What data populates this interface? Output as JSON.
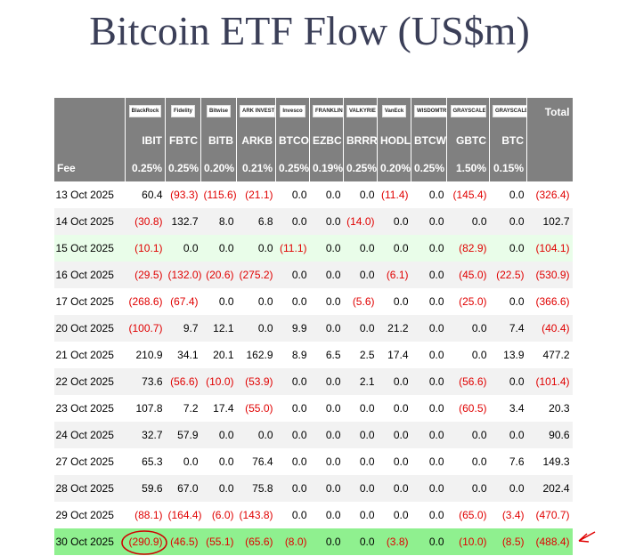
{
  "title": "Bitcoin ETF Flow (US$m)",
  "table": {
    "logos": [
      "BlackRock",
      "Fidelity",
      "Bitwise",
      "ARK INVEST",
      "Invesco",
      "FRANKLIN TEMPLETON",
      "VALKYRIE",
      "VanEck",
      "WISDOMTREE",
      "GRAYSCALE",
      "GRAYSCALE"
    ],
    "total_label": "Total",
    "tickers": [
      "IBIT",
      "FBTC",
      "BITB",
      "ARKB",
      "BTCO",
      "EZBC",
      "BRRR",
      "HODL",
      "BTCW",
      "GBTC",
      "BTC"
    ],
    "fee_label": "Fee",
    "fees": [
      "0.25%",
      "0.25%",
      "0.20%",
      "0.21%",
      "0.25%",
      "0.19%",
      "0.25%",
      "0.20%",
      "0.25%",
      "1.50%",
      "0.15%"
    ],
    "rows": [
      {
        "date": "13 Oct 2025",
        "values": [
          "60.4",
          "(93.3)",
          "(115.6)",
          "(21.1)",
          "0.0",
          "0.0",
          "0.0",
          "(11.4)",
          "0.0",
          "(145.4)",
          "0.0",
          "(326.4)"
        ]
      },
      {
        "date": "14 Oct 2025",
        "values": [
          "(30.8)",
          "132.7",
          "8.0",
          "6.8",
          "0.0",
          "0.0",
          "(14.0)",
          "0.0",
          "0.0",
          "0.0",
          "0.0",
          "102.7"
        ]
      },
      {
        "date": "15 Oct 2025",
        "values": [
          "(10.1)",
          "0.0",
          "0.0",
          "0.0",
          "(11.1)",
          "0.0",
          "0.0",
          "0.0",
          "0.0",
          "(82.9)",
          "0.0",
          "(104.1)"
        ]
      },
      {
        "date": "16 Oct 2025",
        "values": [
          "(29.5)",
          "(132.0)",
          "(20.6)",
          "(275.2)",
          "0.0",
          "0.0",
          "0.0",
          "(6.1)",
          "0.0",
          "(45.0)",
          "(22.5)",
          "(530.9)"
        ]
      },
      {
        "date": "17 Oct 2025",
        "values": [
          "(268.6)",
          "(67.4)",
          "0.0",
          "0.0",
          "0.0",
          "0.0",
          "(5.6)",
          "0.0",
          "0.0",
          "(25.0)",
          "0.0",
          "(366.6)"
        ]
      },
      {
        "date": "20 Oct 2025",
        "values": [
          "(100.7)",
          "9.7",
          "12.1",
          "0.0",
          "9.9",
          "0.0",
          "0.0",
          "21.2",
          "0.0",
          "0.0",
          "7.4",
          "(40.4)"
        ]
      },
      {
        "date": "21 Oct 2025",
        "values": [
          "210.9",
          "34.1",
          "20.1",
          "162.9",
          "8.9",
          "6.5",
          "2.5",
          "17.4",
          "0.0",
          "0.0",
          "13.9",
          "477.2"
        ]
      },
      {
        "date": "22 Oct 2025",
        "values": [
          "73.6",
          "(56.6)",
          "(10.0)",
          "(53.9)",
          "0.0",
          "0.0",
          "2.1",
          "0.0",
          "0.0",
          "(56.6)",
          "0.0",
          "(101.4)"
        ]
      },
      {
        "date": "23 Oct 2025",
        "values": [
          "107.8",
          "7.2",
          "17.4",
          "(55.0)",
          "0.0",
          "0.0",
          "0.0",
          "0.0",
          "0.0",
          "(60.5)",
          "3.4",
          "20.3"
        ]
      },
      {
        "date": "24 Oct 2025",
        "values": [
          "32.7",
          "57.9",
          "0.0",
          "0.0",
          "0.0",
          "0.0",
          "0.0",
          "0.0",
          "0.0",
          "0.0",
          "0.0",
          "90.6"
        ]
      },
      {
        "date": "27 Oct 2025",
        "values": [
          "65.3",
          "0.0",
          "0.0",
          "76.4",
          "0.0",
          "0.0",
          "0.0",
          "0.0",
          "0.0",
          "0.0",
          "7.6",
          "149.3"
        ]
      },
      {
        "date": "28 Oct 2025",
        "values": [
          "59.6",
          "67.0",
          "0.0",
          "75.8",
          "0.0",
          "0.0",
          "0.0",
          "0.0",
          "0.0",
          "0.0",
          "0.0",
          "202.4"
        ]
      },
      {
        "date": "29 Oct 2025",
        "values": [
          "(88.1)",
          "(164.4)",
          "(6.0)",
          "(143.8)",
          "0.0",
          "0.0",
          "0.0",
          "0.0",
          "0.0",
          "(65.0)",
          "(3.4)",
          "(470.7)"
        ]
      },
      {
        "date": "30 Oct 2025",
        "values": [
          "(290.9)",
          "(46.5)",
          "(55.1)",
          "(65.6)",
          "(8.0)",
          "0.0",
          "0.0",
          "(3.8)",
          "0.0",
          "(10.0)",
          "(8.5)",
          "(488.4)"
        ]
      }
    ]
  }
}
